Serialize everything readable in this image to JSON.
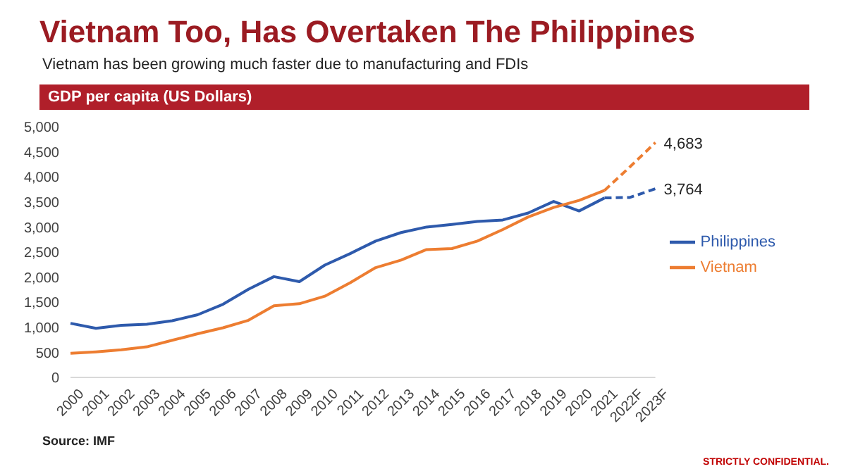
{
  "chart_data": {
    "type": "line",
    "title": "Vietnam Too, Has Overtaken The Philippines",
    "subtitle": "Vietnam has been growing much faster due to manufacturing and FDIs",
    "ylabel": "GDP per capita (US Dollars)",
    "annotations": [
      "Source: IMF",
      "STRICTLY CONFIDENTIAL."
    ],
    "categories": [
      "2000",
      "2001",
      "2002",
      "2003",
      "2004",
      "2005",
      "2006",
      "2007",
      "2008",
      "2009",
      "2010",
      "2011",
      "2012",
      "2013",
      "2014",
      "2015",
      "2016",
      "2017",
      "2018",
      "2019",
      "2020",
      "2021",
      "2022F",
      "2023F"
    ],
    "series": [
      {
        "name": "Philippines",
        "color": "#2e5aac",
        "line_style": "solid",
        "values": [
          1080,
          980,
          1040,
          1060,
          1130,
          1250,
          1460,
          1760,
          2010,
          1910,
          2240,
          2470,
          2720,
          2890,
          3000,
          3050,
          3110,
          3140,
          3280,
          3510,
          3320,
          3580,
          null,
          null
        ]
      },
      {
        "name": "Vietnam",
        "color": "#ed7d31",
        "line_style": "solid",
        "values": [
          480,
          510,
          550,
          610,
          740,
          870,
          990,
          1140,
          1430,
          1470,
          1620,
          1890,
          2190,
          2340,
          2550,
          2570,
          2720,
          2950,
          3200,
          3390,
          3530,
          3730,
          null,
          null
        ]
      },
      {
        "color": "#2e5aac",
        "line_style": "dashed",
        "values": [
          null,
          null,
          null,
          null,
          null,
          null,
          null,
          null,
          null,
          null,
          null,
          null,
          null,
          null,
          null,
          null,
          null,
          null,
          null,
          null,
          null,
          3580,
          3590,
          3764
        ],
        "value_labels": [
          null,
          null,
          null,
          null,
          null,
          null,
          null,
          null,
          null,
          null,
          null,
          null,
          null,
          null,
          null,
          null,
          null,
          null,
          null,
          null,
          null,
          null,
          null,
          "3,764"
        ]
      },
      {
        "color": "#ed7d31",
        "line_style": "dashed",
        "values": [
          null,
          null,
          null,
          null,
          null,
          null,
          null,
          null,
          null,
          null,
          null,
          null,
          null,
          null,
          null,
          null,
          null,
          null,
          null,
          null,
          null,
          3730,
          4200,
          4683
        ],
        "value_labels": [
          null,
          null,
          null,
          null,
          null,
          null,
          null,
          null,
          null,
          null,
          null,
          null,
          null,
          null,
          null,
          null,
          null,
          null,
          null,
          null,
          null,
          null,
          null,
          "4,683"
        ]
      }
    ],
    "ylim": [
      0,
      5000
    ],
    "yticks": [
      0,
      500,
      {
        "value": 1000,
        "label": "1,000"
      },
      {
        "value": 1500,
        "label": "1,500"
      },
      {
        "value": 2000,
        "label": "2,000"
      },
      {
        "value": 2500,
        "label": "2,500"
      },
      {
        "value": 3000,
        "label": "3,000"
      },
      {
        "value": 3500,
        "label": "3,500"
      },
      {
        "value": 4000,
        "label": "4,000"
      },
      {
        "value": 4500,
        "label": "4,500"
      },
      {
        "value": 5000,
        "label": "5,000"
      }
    ],
    "grid": false,
    "legend": "right",
    "marker": "none"
  }
}
